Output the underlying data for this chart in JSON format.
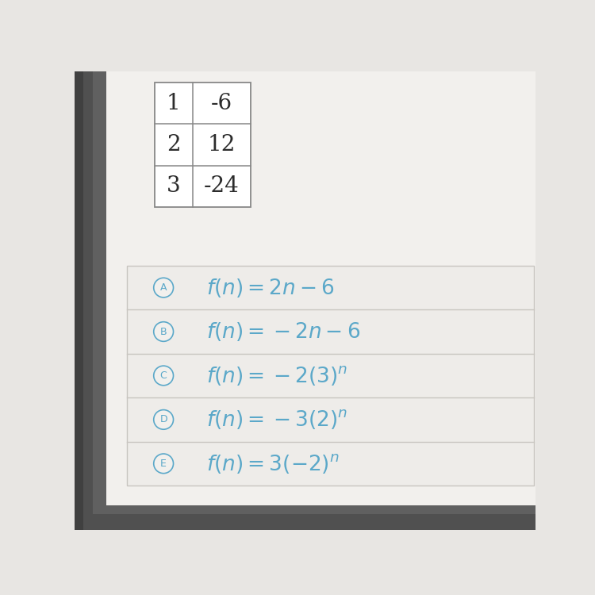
{
  "page_color": "#e8e6e3",
  "content_color": "#f2f0ed",
  "bezel_color": "#4a4a4a",
  "bezel_bottom_color": "#3a3a3a",
  "table_rows": [
    [
      "1",
      "-6"
    ],
    [
      "2",
      "12"
    ],
    [
      "3",
      "-24"
    ]
  ],
  "table_text_color": "#2c2c2c",
  "table_font_size": 20,
  "table_border_color": "#888888",
  "option_color": "#5ba8c9",
  "circle_color": "#5ba8c9",
  "circle_bg": "#f2f0ed",
  "option_font_size": 19,
  "divider_color": "#c8c5c0",
  "options_box_color": "#eeece9",
  "options_box_border": "#c8c5c0",
  "letter_labels": [
    "A",
    "B",
    "C",
    "D",
    "E"
  ],
  "latex_formulas": [
    "$f(n) = 2n - 6$",
    "$f(n) = -2n - 6$",
    "$f(n) = -2(3)^n$",
    "$f(n) = -3(2)^n$",
    "$f(n) = 3(-2)^n$"
  ]
}
